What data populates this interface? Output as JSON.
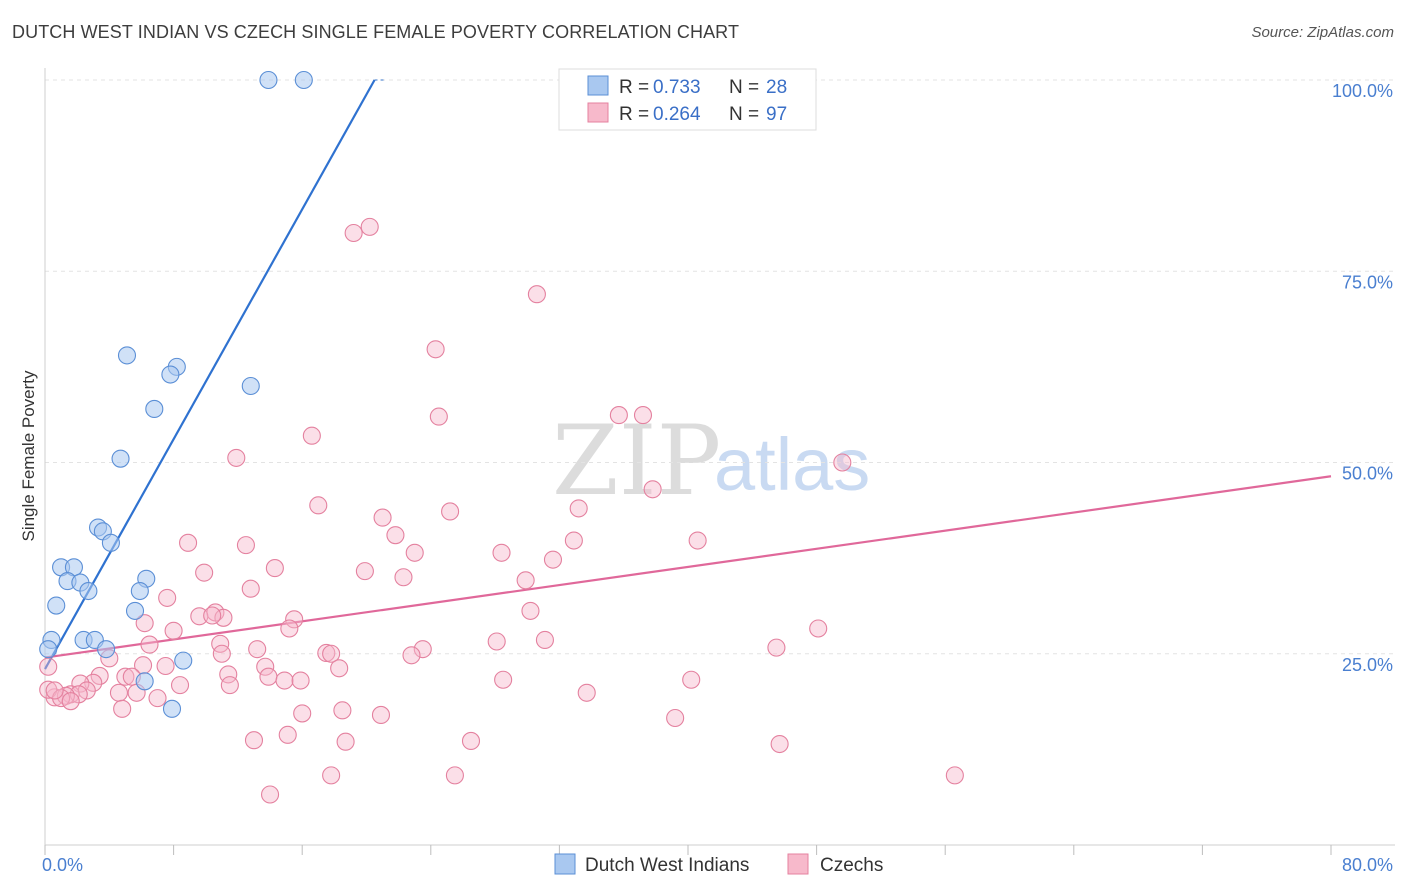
{
  "header": {
    "title": "DUTCH WEST INDIAN VS CZECH SINGLE FEMALE POVERTY CORRELATION CHART",
    "source": "Source: ZipAtlas.com"
  },
  "watermark": {
    "zip": "ZIP",
    "atlas": "atlas"
  },
  "colors": {
    "blue_fill": "#a9c8f0",
    "blue_stroke": "#5b8fd6",
    "blue_line": "#2f72d0",
    "pink_fill": "#f7b9cb",
    "pink_stroke": "#e4819f",
    "pink_line": "#e0689a",
    "grid": "#e3e3e3",
    "axis_label": "#4a7fd0"
  },
  "legend_top": {
    "rows": [
      {
        "r_label": "R =",
        "r_value": "0.733",
        "n_label": "N =",
        "n_value": "28"
      },
      {
        "r_label": "R =",
        "r_value": "0.264",
        "n_label": "N =",
        "n_value": "97"
      }
    ]
  },
  "legend_bottom": {
    "items": [
      "Dutch West Indians",
      "Czechs"
    ]
  },
  "chart_data": {
    "type": "scatter",
    "title": "DUTCH WEST INDIAN VS CZECH SINGLE FEMALE POVERTY CORRELATION CHART",
    "xlabel": "",
    "ylabel": "Single Female Poverty",
    "xlim": [
      0,
      80
    ],
    "ylim": [
      0,
      100
    ],
    "x_tick_labels": [
      "0.0%",
      "80.0%"
    ],
    "y_tick_labels": [
      "100.0%",
      "75.0%",
      "50.0%",
      "25.0%"
    ],
    "y_ticks": [
      100,
      75,
      50,
      25
    ],
    "legend_position": "top-center",
    "series": [
      {
        "name": "Dutch West Indians",
        "R": 0.733,
        "N": 28,
        "trend": {
          "x0": 0,
          "y0": 23,
          "x1": 20.5,
          "y1": 100
        },
        "points": [
          [
            13.9,
            100
          ],
          [
            16.1,
            100
          ],
          [
            5.1,
            64
          ],
          [
            8.2,
            62.5
          ],
          [
            7.8,
            61.5
          ],
          [
            12.8,
            60
          ],
          [
            6.8,
            57
          ],
          [
            4.7,
            50.5
          ],
          [
            3.3,
            41.5
          ],
          [
            3.6,
            41
          ],
          [
            4.1,
            39.5
          ],
          [
            1.0,
            36.3
          ],
          [
            1.8,
            36.3
          ],
          [
            1.4,
            34.5
          ],
          [
            2.2,
            34.3
          ],
          [
            6.3,
            34.8
          ],
          [
            2.7,
            33.2
          ],
          [
            5.9,
            33.2
          ],
          [
            0.7,
            31.3
          ],
          [
            5.6,
            30.6
          ],
          [
            0.4,
            26.8
          ],
          [
            2.4,
            26.8
          ],
          [
            3.1,
            26.8
          ],
          [
            0.2,
            25.6
          ],
          [
            3.8,
            25.6
          ],
          [
            6.2,
            21.4
          ],
          [
            8.6,
            24.1
          ],
          [
            7.9,
            17.8
          ]
        ]
      },
      {
        "name": "Czechs",
        "R": 0.264,
        "N": 97,
        "trend": {
          "x0": 0,
          "y0": 24.5,
          "x1": 80,
          "y1": 48.2
        },
        "points": [
          [
            19.2,
            80
          ],
          [
            20.2,
            80.8
          ],
          [
            30.6,
            72
          ],
          [
            24.3,
            64.8
          ],
          [
            24.5,
            56
          ],
          [
            35.7,
            56.2
          ],
          [
            37.2,
            56.2
          ],
          [
            16.6,
            53.5
          ],
          [
            11.9,
            50.6
          ],
          [
            49.6,
            50
          ],
          [
            37.8,
            46.5
          ],
          [
            17.0,
            44.4
          ],
          [
            25.2,
            43.6
          ],
          [
            21.0,
            42.8
          ],
          [
            33.2,
            44
          ],
          [
            21.8,
            40.5
          ],
          [
            8.9,
            39.5
          ],
          [
            12.5,
            39.2
          ],
          [
            32.9,
            39.8
          ],
          [
            40.6,
            39.8
          ],
          [
            23.0,
            38.2
          ],
          [
            28.4,
            38.2
          ],
          [
            31.6,
            37.3
          ],
          [
            9.9,
            35.6
          ],
          [
            14.3,
            36.2
          ],
          [
            19.9,
            35.8
          ],
          [
            22.3,
            35
          ],
          [
            29.9,
            34.6
          ],
          [
            12.8,
            33.5
          ],
          [
            7.6,
            32.3
          ],
          [
            10.6,
            30.4
          ],
          [
            11.1,
            29.7
          ],
          [
            9.6,
            29.9
          ],
          [
            10.4,
            30
          ],
          [
            15.5,
            29.5
          ],
          [
            30.2,
            30.6
          ],
          [
            6.2,
            29
          ],
          [
            8.0,
            28
          ],
          [
            15.2,
            28.3
          ],
          [
            48.1,
            28.3
          ],
          [
            6.5,
            26.2
          ],
          [
            10.9,
            26.3
          ],
          [
            13.2,
            25.6
          ],
          [
            28.1,
            26.6
          ],
          [
            31.1,
            26.8
          ],
          [
            23.5,
            25.6
          ],
          [
            22.8,
            24.8
          ],
          [
            17.5,
            25.1
          ],
          [
            17.8,
            25
          ],
          [
            45.5,
            25.8
          ],
          [
            11.0,
            25
          ],
          [
            4.0,
            24.4
          ],
          [
            6.1,
            23.5
          ],
          [
            7.5,
            23.4
          ],
          [
            13.7,
            23.3
          ],
          [
            18.3,
            23.1
          ],
          [
            3.4,
            22.1
          ],
          [
            5.0,
            22
          ],
          [
            5.4,
            22
          ],
          [
            11.4,
            22.3
          ],
          [
            13.9,
            22
          ],
          [
            3.0,
            21.2
          ],
          [
            2.2,
            21.1
          ],
          [
            14.9,
            21.5
          ],
          [
            15.9,
            21.5
          ],
          [
            28.5,
            21.6
          ],
          [
            40.2,
            21.6
          ],
          [
            8.4,
            20.9
          ],
          [
            11.5,
            20.9
          ],
          [
            2.6,
            20.2
          ],
          [
            4.6,
            19.9
          ],
          [
            5.7,
            19.9
          ],
          [
            33.7,
            19.9
          ],
          [
            1.6,
            19.7
          ],
          [
            2.1,
            19.7
          ],
          [
            0.6,
            19.3
          ],
          [
            1.3,
            19.5
          ],
          [
            7.0,
            19.2
          ],
          [
            0.2,
            20.3
          ],
          [
            1.0,
            19.2
          ],
          [
            1.6,
            18.8
          ],
          [
            4.8,
            17.8
          ],
          [
            16.0,
            17.2
          ],
          [
            18.5,
            17.6
          ],
          [
            20.9,
            17
          ],
          [
            39.2,
            16.6
          ],
          [
            13.0,
            13.7
          ],
          [
            26.5,
            13.6
          ],
          [
            15.1,
            14.4
          ],
          [
            18.7,
            13.5
          ],
          [
            45.7,
            13.2
          ],
          [
            17.8,
            9.1
          ],
          [
            25.5,
            9.1
          ],
          [
            56.6,
            9.1
          ],
          [
            14.0,
            6.6
          ],
          [
            0.2,
            23.3
          ],
          [
            0.6,
            20.2
          ]
        ]
      }
    ]
  }
}
